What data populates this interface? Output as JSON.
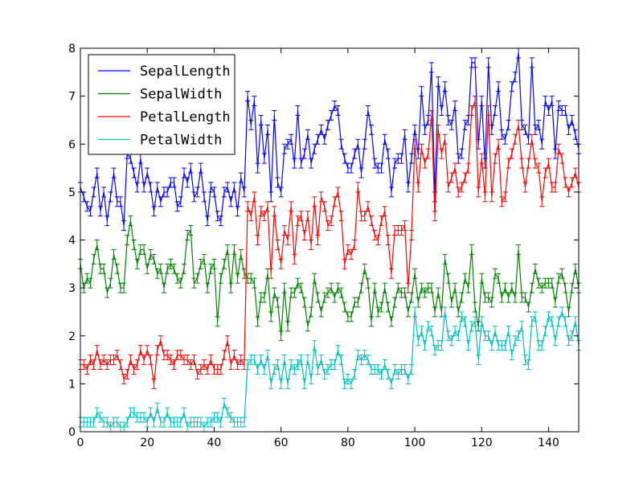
{
  "chart_data": {
    "type": "line",
    "title": "",
    "xlabel": "",
    "ylabel": "",
    "xlim": [
      0,
      149
    ],
    "ylim": [
      0,
      8
    ],
    "xticks": [
      0,
      20,
      40,
      60,
      80,
      100,
      120,
      140
    ],
    "yticks": [
      0,
      1,
      2,
      3,
      4,
      5,
      6,
      7,
      8
    ],
    "xtick_labels": [
      "0",
      "20",
      "40",
      "60",
      "80",
      "100",
      "120",
      "140"
    ],
    "ytick_labels": [
      "0",
      "1",
      "2",
      "3",
      "4",
      "5",
      "6",
      "7",
      "8"
    ],
    "grid": false,
    "legend_position": "top-left",
    "error_bars": "symmetric capped, magnitude 0.1",
    "series": [
      {
        "name": "SepalLength",
        "color": "#0000ff",
        "values": [
          5.1,
          4.9,
          4.7,
          4.6,
          5.0,
          5.4,
          4.6,
          5.0,
          4.4,
          4.9,
          5.4,
          4.8,
          4.8,
          4.3,
          5.8,
          5.7,
          5.4,
          5.1,
          5.7,
          5.1,
          5.4,
          5.1,
          4.6,
          5.1,
          4.8,
          5.0,
          5.0,
          5.2,
          5.2,
          4.7,
          4.8,
          5.4,
          5.2,
          5.5,
          4.9,
          5.0,
          5.5,
          4.9,
          4.4,
          5.1,
          5.0,
          4.5,
          4.4,
          5.0,
          5.1,
          4.8,
          5.1,
          4.6,
          5.3,
          5.0,
          7.0,
          6.4,
          6.9,
          5.5,
          6.5,
          5.7,
          6.3,
          4.9,
          6.6,
          5.2,
          5.0,
          5.9,
          6.0,
          6.1,
          5.6,
          6.7,
          5.6,
          5.8,
          6.2,
          5.6,
          5.9,
          6.1,
          6.3,
          6.1,
          6.4,
          6.6,
          6.8,
          6.7,
          6.0,
          5.7,
          5.5,
          5.5,
          5.8,
          6.0,
          5.4,
          6.0,
          6.7,
          6.3,
          5.6,
          5.5,
          5.5,
          6.1,
          5.8,
          5.0,
          5.6,
          5.7,
          5.7,
          6.2,
          5.1,
          5.7,
          6.3,
          5.8,
          7.1,
          6.3,
          6.5,
          7.6,
          4.9,
          7.3,
          6.7,
          7.2,
          6.5,
          6.4,
          6.8,
          5.7,
          5.8,
          6.4,
          6.5,
          7.7,
          7.7,
          6.0,
          6.9,
          5.6,
          7.7,
          6.3,
          6.7,
          7.2,
          6.2,
          6.1,
          6.4,
          7.2,
          7.4,
          7.9,
          6.4,
          6.3,
          6.1,
          7.7,
          6.3,
          6.4,
          6.0,
          6.9,
          6.7,
          6.9,
          5.8,
          6.8,
          6.7,
          6.7,
          6.3,
          6.5,
          6.2,
          5.9
        ]
      },
      {
        "name": "SepalWidth",
        "color": "#008000",
        "values": [
          3.5,
          3.0,
          3.2,
          3.1,
          3.6,
          3.9,
          3.4,
          3.4,
          2.9,
          3.1,
          3.7,
          3.4,
          3.0,
          3.0,
          4.0,
          4.4,
          3.9,
          3.5,
          3.8,
          3.8,
          3.4,
          3.7,
          3.6,
          3.3,
          3.4,
          3.0,
          3.4,
          3.5,
          3.4,
          3.2,
          3.1,
          3.4,
          4.1,
          4.2,
          3.1,
          3.2,
          3.5,
          3.6,
          3.0,
          3.4,
          3.5,
          2.3,
          3.2,
          3.5,
          3.8,
          3.0,
          3.8,
          3.2,
          3.7,
          3.3,
          3.2,
          3.2,
          3.1,
          2.3,
          2.8,
          2.8,
          3.3,
          2.4,
          2.9,
          2.7,
          2.0,
          3.0,
          2.2,
          2.9,
          2.9,
          3.1,
          3.0,
          2.7,
          2.2,
          2.5,
          3.2,
          2.8,
          2.5,
          2.8,
          2.9,
          3.0,
          2.8,
          3.0,
          2.9,
          2.6,
          2.4,
          2.4,
          2.7,
          2.7,
          3.0,
          3.4,
          3.1,
          2.3,
          3.0,
          2.5,
          2.6,
          3.0,
          2.6,
          2.3,
          2.7,
          3.0,
          2.9,
          2.9,
          2.5,
          2.8,
          3.3,
          2.7,
          3.0,
          2.9,
          3.0,
          3.0,
          2.5,
          2.9,
          2.5,
          3.6,
          3.2,
          2.7,
          3.0,
          2.5,
          2.8,
          3.2,
          3.0,
          3.8,
          2.6,
          2.2,
          3.2,
          2.8,
          2.8,
          2.7,
          3.3,
          3.2,
          2.8,
          3.0,
          2.8,
          3.0,
          2.8,
          3.8,
          2.8,
          2.8,
          2.6,
          3.0,
          3.4,
          3.1,
          3.0,
          3.1,
          3.1,
          3.1,
          2.7,
          3.2,
          3.3,
          3.0,
          2.5,
          3.0,
          3.4,
          3.0
        ]
      },
      {
        "name": "PetalLength",
        "color": "#ff0000",
        "values": [
          1.4,
          1.4,
          1.3,
          1.5,
          1.4,
          1.7,
          1.4,
          1.5,
          1.4,
          1.5,
          1.5,
          1.6,
          1.4,
          1.1,
          1.2,
          1.5,
          1.3,
          1.4,
          1.7,
          1.5,
          1.7,
          1.5,
          1.0,
          1.7,
          1.9,
          1.6,
          1.6,
          1.5,
          1.4,
          1.6,
          1.6,
          1.5,
          1.5,
          1.4,
          1.5,
          1.2,
          1.3,
          1.4,
          1.3,
          1.5,
          1.3,
          1.3,
          1.3,
          1.6,
          1.9,
          1.4,
          1.6,
          1.4,
          1.5,
          1.4,
          4.7,
          4.5,
          4.9,
          4.0,
          4.6,
          4.5,
          4.7,
          3.3,
          4.6,
          3.9,
          3.5,
          4.2,
          4.0,
          4.7,
          3.6,
          4.4,
          4.5,
          4.1,
          4.5,
          3.9,
          4.8,
          4.0,
          4.9,
          4.7,
          4.3,
          4.4,
          4.8,
          5.0,
          4.5,
          3.5,
          3.8,
          3.7,
          3.9,
          5.1,
          4.5,
          4.5,
          4.7,
          4.4,
          4.1,
          4.0,
          4.4,
          4.6,
          4.0,
          3.3,
          4.2,
          4.2,
          4.2,
          4.3,
          3.0,
          4.1,
          6.0,
          5.1,
          5.9,
          5.6,
          5.8,
          6.6,
          4.5,
          6.3,
          5.8,
          6.1,
          5.1,
          5.3,
          5.5,
          5.0,
          5.1,
          5.3,
          5.5,
          6.7,
          6.9,
          5.0,
          5.7,
          4.9,
          6.7,
          4.9,
          5.7,
          6.0,
          4.8,
          4.9,
          5.6,
          5.8,
          6.1,
          6.4,
          5.6,
          5.1,
          5.6,
          6.1,
          5.6,
          5.5,
          4.8,
          5.4,
          5.6,
          5.1,
          5.1,
          5.9,
          5.7,
          5.2,
          5.0,
          5.2,
          5.4,
          5.1
        ]
      },
      {
        "name": "PetalWidth",
        "color": "#00bfbf",
        "values": [
          0.2,
          0.2,
          0.2,
          0.2,
          0.2,
          0.4,
          0.3,
          0.2,
          0.2,
          0.1,
          0.2,
          0.2,
          0.1,
          0.1,
          0.2,
          0.4,
          0.4,
          0.3,
          0.3,
          0.3,
          0.2,
          0.4,
          0.2,
          0.5,
          0.2,
          0.2,
          0.4,
          0.2,
          0.2,
          0.2,
          0.2,
          0.4,
          0.1,
          0.2,
          0.2,
          0.2,
          0.2,
          0.1,
          0.2,
          0.2,
          0.3,
          0.3,
          0.2,
          0.6,
          0.4,
          0.3,
          0.2,
          0.2,
          0.2,
          0.2,
          1.4,
          1.5,
          1.5,
          1.3,
          1.5,
          1.3,
          1.6,
          1.0,
          1.3,
          1.4,
          1.0,
          1.5,
          1.0,
          1.4,
          1.3,
          1.4,
          1.5,
          1.0,
          1.5,
          1.1,
          1.8,
          1.3,
          1.5,
          1.2,
          1.3,
          1.4,
          1.4,
          1.7,
          1.5,
          1.0,
          1.1,
          1.0,
          1.2,
          1.6,
          1.5,
          1.6,
          1.5,
          1.3,
          1.3,
          1.3,
          1.2,
          1.4,
          1.2,
          1.0,
          1.3,
          1.2,
          1.3,
          1.3,
          1.1,
          1.3,
          2.5,
          1.9,
          2.1,
          1.8,
          2.2,
          2.1,
          1.7,
          1.8,
          1.8,
          2.5,
          2.0,
          1.9,
          2.1,
          2.0,
          2.4,
          2.3,
          1.8,
          2.2,
          2.3,
          1.5,
          2.3,
          2.0,
          2.0,
          1.8,
          2.1,
          1.8,
          1.8,
          1.8,
          2.1,
          1.6,
          1.9,
          2.0,
          2.2,
          1.5,
          1.4,
          2.3,
          2.4,
          1.8,
          1.8,
          2.1,
          2.4,
          2.3,
          1.9,
          2.3,
          2.5,
          2.3,
          1.9,
          2.0,
          2.3,
          1.8
        ]
      }
    ]
  }
}
